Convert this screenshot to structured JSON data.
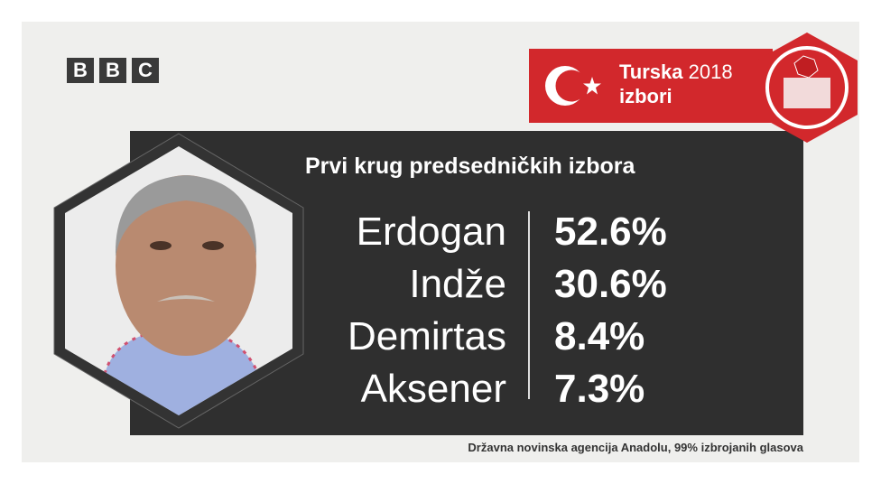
{
  "logo": {
    "letters": [
      "B",
      "B",
      "C"
    ]
  },
  "banner": {
    "country": "Turska",
    "year": "2018",
    "subtitle": "izbori",
    "flag_color": "#d2282c",
    "icon": "ballot-box-icon"
  },
  "headline": "Prvi krug predsedničkih izbora",
  "results": [
    {
      "name": "Erdogan",
      "value": "52.6%"
    },
    {
      "name": "Indže",
      "value": "30.6%"
    },
    {
      "name": "Demirtas",
      "value": "8.4%"
    },
    {
      "name": "Aksener",
      "value": "7.3%"
    }
  ],
  "source": "Državna novinska agencija Anadolu, 99% izbrojanih glasova",
  "colors": {
    "panel": "#2f2f2f",
    "background": "#efefed",
    "accent": "#d2282c"
  }
}
